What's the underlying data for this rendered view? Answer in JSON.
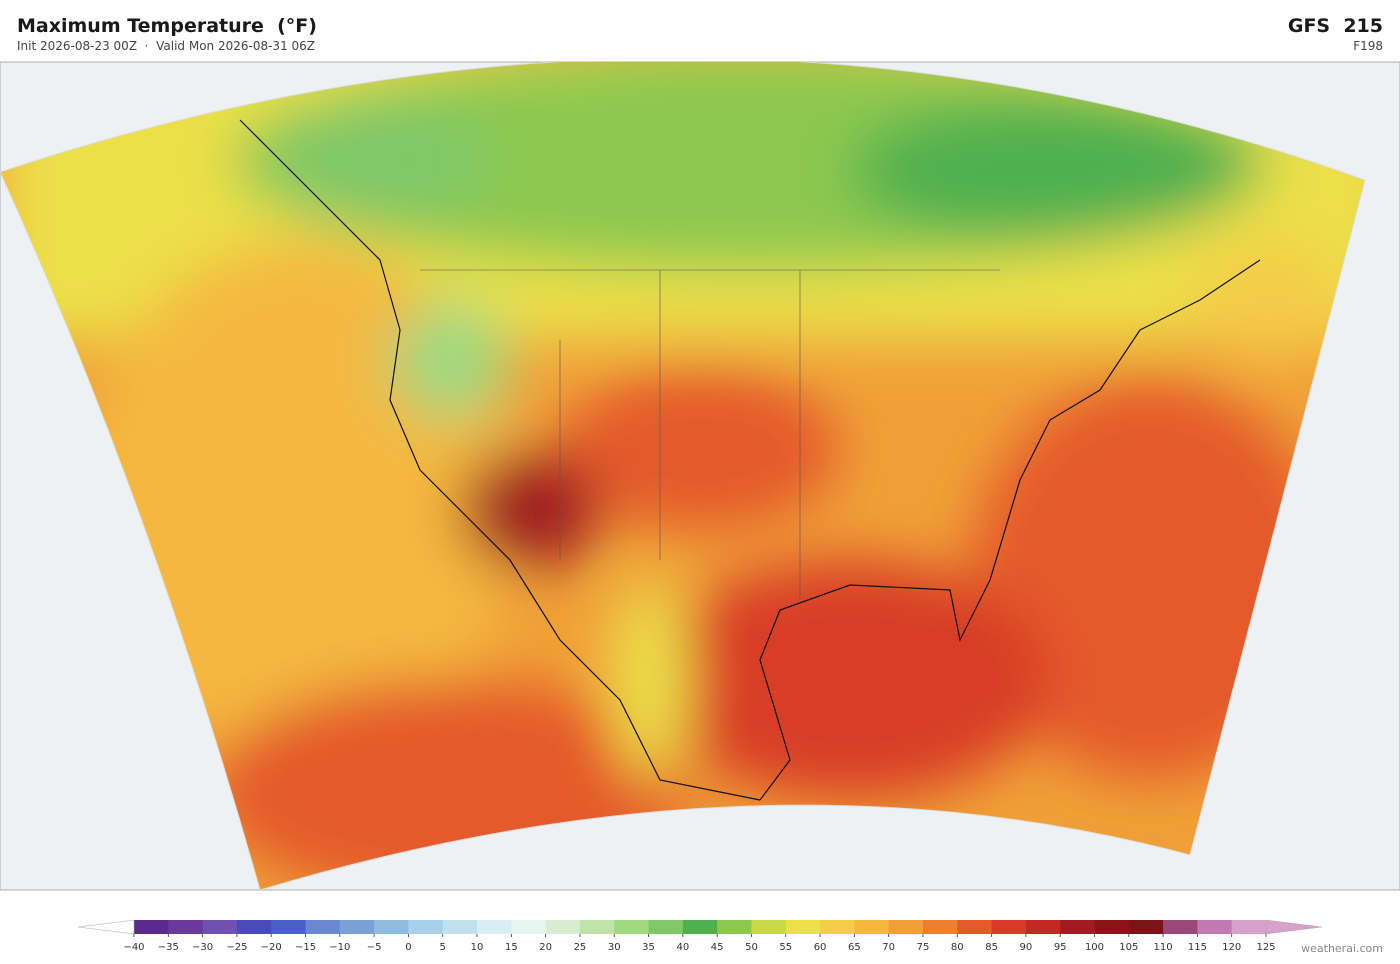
{
  "header": {
    "title": "Maximum Temperature  (°F)",
    "subtitle": "Init 2026-08-23 00Z  ·  Valid Mon 2026-08-31 06Z",
    "model": "GFS  215",
    "forecast_hour": "F198"
  },
  "colorbar": {
    "ticks": [
      {
        "value": -40,
        "label": "−40"
      },
      {
        "value": -35,
        "label": "−35"
      },
      {
        "value": -30,
        "label": "−30"
      },
      {
        "value": -25,
        "label": "−25"
      },
      {
        "value": -20,
        "label": "−20"
      },
      {
        "value": -15,
        "label": "−15"
      },
      {
        "value": -10,
        "label": "−10"
      },
      {
        "value": -5,
        "label": "−5"
      },
      0,
      5,
      10,
      15,
      20,
      25,
      30,
      35,
      40,
      45,
      50,
      55,
      60,
      65,
      70,
      75,
      80,
      85,
      90,
      95,
      100,
      105,
      110,
      115,
      120,
      125
    ],
    "colors": [
      "#5b2a8c",
      "#6a3a9a",
      "#7050b0",
      "#4a4ab8",
      "#4a60c8",
      "#6a88d0",
      "#7aa0d8",
      "#90bce0",
      "#a8d0e8",
      "#c0e0ee",
      "#d8eef2",
      "#e8f4f0",
      "#d8ecd0",
      "#c0e4a8",
      "#a0d880",
      "#80c868",
      "#50b050",
      "#8cc850",
      "#c8d848",
      "#ece048",
      "#f4cc48",
      "#f4b840",
      "#f0a038",
      "#ec8030",
      "#e45a2a",
      "#d83c28",
      "#c02a22",
      "#a01c20",
      "#8c1418",
      "#7a1418",
      "#9a4878",
      "#c07ab0",
      "#d8a0cc"
    ]
  },
  "credit": "weatherai.com"
}
